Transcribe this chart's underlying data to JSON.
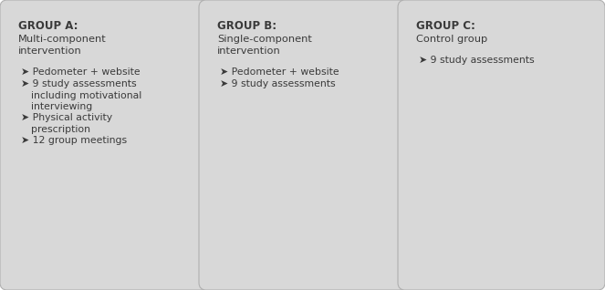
{
  "background_color": "#ffffff",
  "box_fill_color": "#d8d8d8",
  "box_edge_color": "#b0b0b0",
  "text_color": "#3a3a3a",
  "figsize": [
    6.63,
    3.18
  ],
  "dpi": 100,
  "groups": [
    {
      "title": "GROUP A:",
      "subtitle_lines": [
        "Multi-component",
        "intervention"
      ],
      "bullets": [
        {
          "first": "Pedometer + website",
          "cont": []
        },
        {
          "first": "9 study assessments",
          "cont": [
            "including motivational",
            "interviewing"
          ]
        },
        {
          "first": "Physical activity",
          "cont": [
            "prescription"
          ]
        },
        {
          "first": "12 group meetings",
          "cont": []
        }
      ]
    },
    {
      "title": "GROUP B:",
      "subtitle_lines": [
        "Single-component",
        "intervention"
      ],
      "bullets": [
        {
          "first": "Pedometer + website",
          "cont": []
        },
        {
          "first": "9 study assessments",
          "cont": []
        }
      ]
    },
    {
      "title": "GROUP C:",
      "subtitle_lines": [
        "Control group"
      ],
      "bullets": [
        {
          "first": "9 study assessments",
          "cont": []
        }
      ]
    }
  ]
}
